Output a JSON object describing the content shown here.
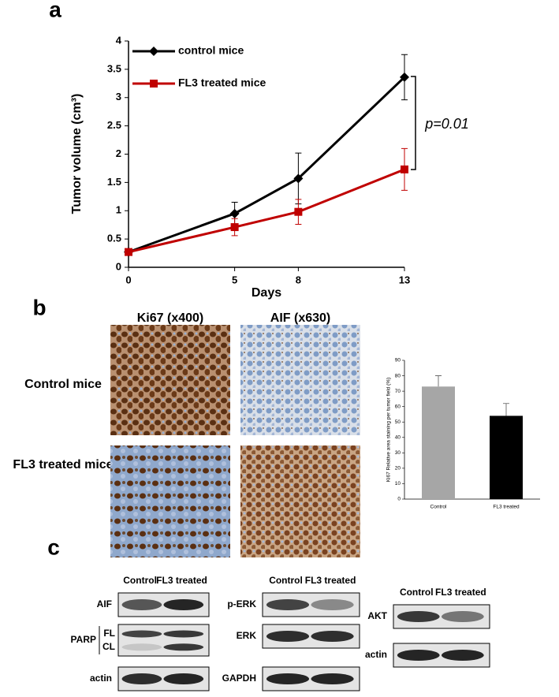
{
  "panel_labels": [
    "a",
    "b",
    "c"
  ],
  "chart_data": [
    {
      "type": "line",
      "ylabel": "Tumor volume (cm³)",
      "xlabel": "Days",
      "x": [
        0,
        5,
        8,
        13
      ],
      "xlim": [
        0,
        13
      ],
      "xticks": [
        0,
        5,
        8,
        13
      ],
      "ylim": [
        0,
        4
      ],
      "yticks": [
        0,
        0.5,
        1,
        1.5,
        2,
        2.5,
        3,
        3.5,
        4
      ],
      "series": [
        {
          "name": "control mice",
          "color": "#000000",
          "marker": "diamond",
          "values": [
            0.27,
            0.95,
            1.57,
            3.36
          ],
          "errors": [
            0.02,
            0.2,
            0.45,
            0.4
          ]
        },
        {
          "name": "FL3 treated mice",
          "color": "#c00000",
          "marker": "square",
          "values": [
            0.27,
            0.71,
            0.98,
            1.73
          ],
          "errors": [
            0.02,
            0.15,
            0.22,
            0.37
          ]
        }
      ],
      "annotation": "p=0.01"
    },
    {
      "type": "bar",
      "ylabel": "Ki67 Relative area staining per tumor field  (%)",
      "categories": [
        "Control",
        "FL3 treated"
      ],
      "values": [
        73,
        54
      ],
      "errors": [
        7,
        8
      ],
      "colors": [
        "#a6a6a6",
        "#000000"
      ],
      "ylim": [
        0,
        90
      ],
      "yticks": [
        0,
        10,
        20,
        30,
        40,
        50,
        60,
        70,
        80,
        90
      ]
    }
  ],
  "images": {
    "columns": [
      "Ki67 (x400)",
      "AIF (x630)"
    ],
    "rows": [
      "Control mice",
      "FL3 treated mice"
    ]
  },
  "blots": [
    {
      "columns": [
        "Control",
        "FL3 treated"
      ],
      "rows": [
        {
          "label": "AIF"
        },
        {
          "label": "PARP",
          "sub": [
            "FL",
            "CL"
          ]
        },
        {
          "label": "actin"
        }
      ]
    },
    {
      "columns": [
        "Control",
        "FL3 treated"
      ],
      "rows": [
        {
          "label": "p-ERK"
        },
        {
          "label": "ERK"
        },
        {
          "label": "GAPDH"
        }
      ]
    },
    {
      "columns": [
        "Control",
        "FL3 treated"
      ],
      "rows": [
        {
          "label": "AKT"
        },
        {
          "label": "actin"
        }
      ]
    }
  ]
}
